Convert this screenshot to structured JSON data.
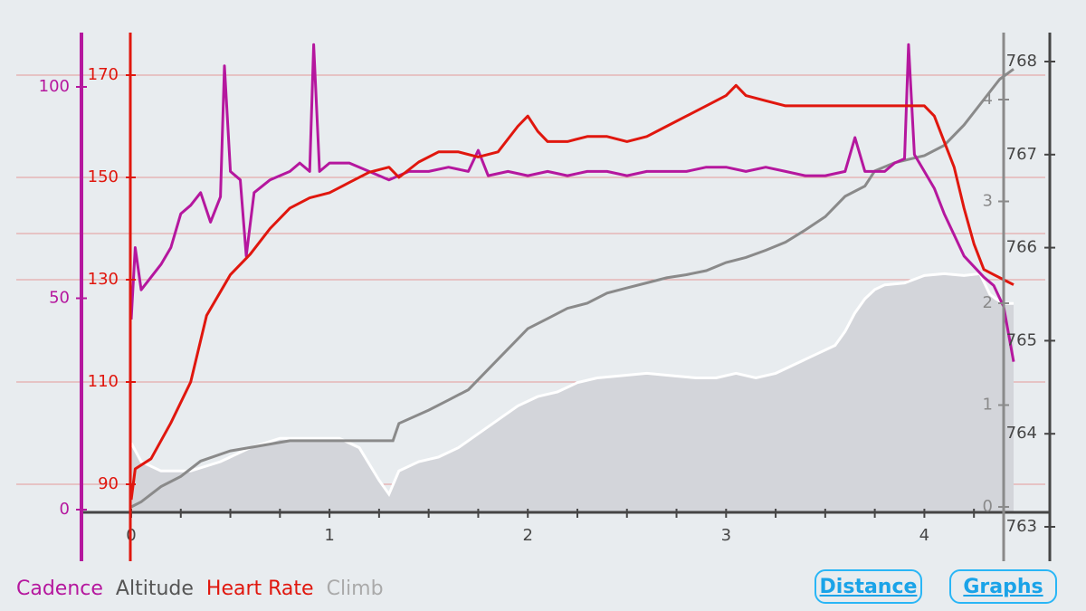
{
  "colors": {
    "cadence": "#b5179e",
    "heart_rate": "#e0170e",
    "altitude": "#8a8a8a",
    "climb_fill": "#d3d5da",
    "climb_line": "#ffffff",
    "gridline": "#e59a9a",
    "axis": "#454545"
  },
  "legend": {
    "cadence": "Cadence",
    "altitude": "Altitude",
    "heart_rate": "Heart Rate",
    "climb": "Climb"
  },
  "buttons": {
    "distance": "Distance",
    "graphs": "Graphs"
  },
  "chart_data": {
    "type": "line",
    "x": {
      "range": [
        0,
        4.45
      ],
      "ticks": [
        0,
        1,
        2,
        3,
        4
      ]
    },
    "axes": {
      "cadence": {
        "range": [
          0,
          115
        ],
        "ticks": [
          0,
          50,
          100
        ]
      },
      "heart_rate": {
        "range": [
          84,
          178
        ],
        "ticks": [
          90,
          110,
          130,
          150,
          170
        ]
      },
      "climb": {
        "range": [
          0,
          4.3
        ],
        "ticks": [
          0,
          1,
          2,
          3,
          4
        ]
      },
      "altitude": {
        "range": [
          763,
          768.1
        ],
        "ticks": [
          763,
          764,
          765,
          766,
          767,
          768
        ]
      }
    },
    "grid": "horizontal",
    "series": [
      {
        "name": "Climb",
        "axis": "climb",
        "points": [
          [
            0,
            0
          ],
          [
            0.05,
            0.05
          ],
          [
            0.15,
            0.2
          ],
          [
            0.25,
            0.3
          ],
          [
            0.35,
            0.45
          ],
          [
            0.5,
            0.55
          ],
          [
            0.65,
            0.6
          ],
          [
            0.8,
            0.65
          ],
          [
            1.0,
            0.65
          ],
          [
            1.2,
            0.65
          ],
          [
            1.32,
            0.65
          ],
          [
            1.35,
            0.82
          ],
          [
            1.5,
            0.95
          ],
          [
            1.6,
            1.05
          ],
          [
            1.7,
            1.15
          ],
          [
            1.8,
            1.35
          ],
          [
            1.9,
            1.55
          ],
          [
            2.0,
            1.75
          ],
          [
            2.1,
            1.85
          ],
          [
            2.2,
            1.95
          ],
          [
            2.3,
            2.0
          ],
          [
            2.4,
            2.1
          ],
          [
            2.5,
            2.15
          ],
          [
            2.6,
            2.2
          ],
          [
            2.7,
            2.25
          ],
          [
            2.8,
            2.28
          ],
          [
            2.9,
            2.32
          ],
          [
            3.0,
            2.4
          ],
          [
            3.1,
            2.45
          ],
          [
            3.2,
            2.52
          ],
          [
            3.3,
            2.6
          ],
          [
            3.4,
            2.72
          ],
          [
            3.5,
            2.85
          ],
          [
            3.6,
            3.05
          ],
          [
            3.7,
            3.15
          ],
          [
            3.75,
            3.3
          ],
          [
            3.85,
            3.38
          ],
          [
            4.0,
            3.45
          ],
          [
            4.1,
            3.55
          ],
          [
            4.2,
            3.75
          ],
          [
            4.3,
            4.0
          ],
          [
            4.38,
            4.2
          ],
          [
            4.45,
            4.3
          ]
        ]
      },
      {
        "name": "Altitude",
        "axis": "altitude",
        "points": [
          [
            0,
            763.9
          ],
          [
            0.05,
            763.7
          ],
          [
            0.15,
            763.6
          ],
          [
            0.3,
            763.6
          ],
          [
            0.45,
            763.7
          ],
          [
            0.6,
            763.85
          ],
          [
            0.75,
            763.95
          ],
          [
            0.9,
            763.95
          ],
          [
            1.05,
            763.95
          ],
          [
            1.15,
            763.85
          ],
          [
            1.25,
            763.5
          ],
          [
            1.3,
            763.35
          ],
          [
            1.35,
            763.6
          ],
          [
            1.45,
            763.7
          ],
          [
            1.55,
            763.75
          ],
          [
            1.65,
            763.85
          ],
          [
            1.75,
            764.0
          ],
          [
            1.85,
            764.15
          ],
          [
            1.95,
            764.3
          ],
          [
            2.05,
            764.4
          ],
          [
            2.15,
            764.45
          ],
          [
            2.25,
            764.55
          ],
          [
            2.35,
            764.6
          ],
          [
            2.45,
            764.62
          ],
          [
            2.6,
            764.65
          ],
          [
            2.75,
            764.62
          ],
          [
            2.85,
            764.6
          ],
          [
            2.95,
            764.6
          ],
          [
            3.05,
            764.65
          ],
          [
            3.15,
            764.6
          ],
          [
            3.25,
            764.65
          ],
          [
            3.35,
            764.75
          ],
          [
            3.45,
            764.85
          ],
          [
            3.55,
            764.95
          ],
          [
            3.6,
            765.1
          ],
          [
            3.65,
            765.3
          ],
          [
            3.7,
            765.45
          ],
          [
            3.75,
            765.55
          ],
          [
            3.8,
            765.6
          ],
          [
            3.9,
            765.62
          ],
          [
            4.0,
            765.7
          ],
          [
            4.1,
            765.72
          ],
          [
            4.2,
            765.7
          ],
          [
            4.28,
            765.72
          ],
          [
            4.33,
            765.5
          ],
          [
            4.36,
            765.45
          ],
          [
            4.4,
            765.4
          ],
          [
            4.45,
            765.4
          ]
        ]
      },
      {
        "name": "Heart Rate",
        "axis": "heart_rate",
        "points": [
          [
            0,
            87
          ],
          [
            0.02,
            93
          ],
          [
            0.1,
            95
          ],
          [
            0.2,
            102
          ],
          [
            0.3,
            110
          ],
          [
            0.38,
            123
          ],
          [
            0.5,
            131
          ],
          [
            0.6,
            135
          ],
          [
            0.7,
            140
          ],
          [
            0.8,
            144
          ],
          [
            0.9,
            146
          ],
          [
            1.0,
            147
          ],
          [
            1.1,
            149
          ],
          [
            1.2,
            151
          ],
          [
            1.3,
            152
          ],
          [
            1.35,
            150
          ],
          [
            1.45,
            153
          ],
          [
            1.55,
            155
          ],
          [
            1.65,
            155
          ],
          [
            1.75,
            154
          ],
          [
            1.85,
            155
          ],
          [
            1.95,
            160
          ],
          [
            2.0,
            162
          ],
          [
            2.05,
            159
          ],
          [
            2.1,
            157
          ],
          [
            2.2,
            157
          ],
          [
            2.3,
            158
          ],
          [
            2.4,
            158
          ],
          [
            2.5,
            157
          ],
          [
            2.6,
            158
          ],
          [
            2.7,
            160
          ],
          [
            2.8,
            162
          ],
          [
            2.9,
            164
          ],
          [
            3.0,
            166
          ],
          [
            3.05,
            168
          ],
          [
            3.1,
            166
          ],
          [
            3.2,
            165
          ],
          [
            3.3,
            164
          ],
          [
            3.4,
            164
          ],
          [
            3.5,
            164
          ],
          [
            3.6,
            164
          ],
          [
            3.7,
            164
          ],
          [
            3.8,
            164
          ],
          [
            3.9,
            164
          ],
          [
            4.0,
            164
          ],
          [
            4.05,
            162
          ],
          [
            4.1,
            157
          ],
          [
            4.15,
            152
          ],
          [
            4.2,
            144
          ],
          [
            4.25,
            137
          ],
          [
            4.3,
            132
          ],
          [
            4.35,
            131
          ],
          [
            4.4,
            130
          ],
          [
            4.45,
            129
          ]
        ]
      },
      {
        "name": "Cadence",
        "axis": "cadence",
        "points": [
          [
            0,
            45
          ],
          [
            0.02,
            62
          ],
          [
            0.05,
            52
          ],
          [
            0.1,
            55
          ],
          [
            0.15,
            58
          ],
          [
            0.2,
            62
          ],
          [
            0.25,
            70
          ],
          [
            0.3,
            72
          ],
          [
            0.35,
            75
          ],
          [
            0.4,
            68
          ],
          [
            0.45,
            74
          ],
          [
            0.47,
            105
          ],
          [
            0.5,
            80
          ],
          [
            0.55,
            78
          ],
          [
            0.58,
            60
          ],
          [
            0.62,
            75
          ],
          [
            0.7,
            78
          ],
          [
            0.8,
            80
          ],
          [
            0.85,
            82
          ],
          [
            0.9,
            80
          ],
          [
            0.92,
            110
          ],
          [
            0.95,
            80
          ],
          [
            1.0,
            82
          ],
          [
            1.1,
            82
          ],
          [
            1.2,
            80
          ],
          [
            1.3,
            78
          ],
          [
            1.4,
            80
          ],
          [
            1.5,
            80
          ],
          [
            1.6,
            81
          ],
          [
            1.7,
            80
          ],
          [
            1.75,
            85
          ],
          [
            1.8,
            79
          ],
          [
            1.9,
            80
          ],
          [
            2.0,
            79
          ],
          [
            2.1,
            80
          ],
          [
            2.2,
            79
          ],
          [
            2.3,
            80
          ],
          [
            2.4,
            80
          ],
          [
            2.5,
            79
          ],
          [
            2.6,
            80
          ],
          [
            2.7,
            80
          ],
          [
            2.8,
            80
          ],
          [
            2.9,
            81
          ],
          [
            3.0,
            81
          ],
          [
            3.1,
            80
          ],
          [
            3.2,
            81
          ],
          [
            3.3,
            80
          ],
          [
            3.4,
            79
          ],
          [
            3.5,
            79
          ],
          [
            3.6,
            80
          ],
          [
            3.65,
            88
          ],
          [
            3.7,
            80
          ],
          [
            3.8,
            80
          ],
          [
            3.85,
            82
          ],
          [
            3.9,
            83
          ],
          [
            3.92,
            110
          ],
          [
            3.95,
            84
          ],
          [
            4.0,
            80
          ],
          [
            4.05,
            76
          ],
          [
            4.1,
            70
          ],
          [
            4.15,
            65
          ],
          [
            4.2,
            60
          ],
          [
            4.3,
            55
          ],
          [
            4.35,
            53
          ],
          [
            4.4,
            48
          ],
          [
            4.45,
            35
          ]
        ]
      }
    ],
    "legend": [
      "Cadence",
      "Altitude",
      "Heart Rate",
      "Climb"
    ],
    "legend_position": "bottom-left"
  }
}
